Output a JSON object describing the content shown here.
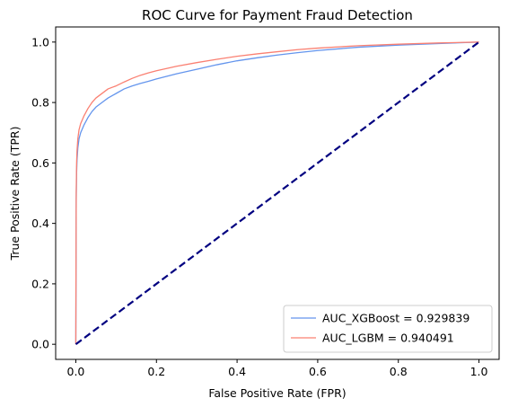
{
  "chart_data": {
    "type": "line",
    "title": "ROC Curve for Payment Fraud Detection",
    "xlabel": "False Positive Rate (FPR)",
    "ylabel": "True Positive Rate (TPR)",
    "xlim": [
      -0.05,
      1.05
    ],
    "ylim": [
      -0.05,
      1.05
    ],
    "xticks": [
      "0.0",
      "0.2",
      "0.4",
      "0.6",
      "0.8",
      "1.0"
    ],
    "yticks": [
      "0.0",
      "0.2",
      "0.4",
      "0.6",
      "0.8",
      "1.0"
    ],
    "grid": false,
    "legend_position": "lower-right",
    "series": [
      {
        "name": "AUC_XGBoost = 0.929839",
        "color": "#6495ed",
        "style": "solid",
        "x": [
          0.0,
          0.001,
          0.002,
          0.003,
          0.005,
          0.008,
          0.012,
          0.02,
          0.03,
          0.04,
          0.05,
          0.06,
          0.07,
          0.08,
          0.1,
          0.12,
          0.14,
          0.16,
          0.18,
          0.2,
          0.25,
          0.3,
          0.35,
          0.4,
          0.45,
          0.5,
          0.55,
          0.6,
          0.7,
          0.8,
          0.9,
          1.0
        ],
        "y": [
          0.0,
          0.48,
          0.57,
          0.61,
          0.65,
          0.68,
          0.7,
          0.725,
          0.75,
          0.77,
          0.785,
          0.795,
          0.805,
          0.815,
          0.83,
          0.845,
          0.855,
          0.863,
          0.87,
          0.878,
          0.895,
          0.91,
          0.925,
          0.938,
          0.948,
          0.957,
          0.965,
          0.972,
          0.983,
          0.99,
          0.995,
          1.0
        ]
      },
      {
        "name": "AUC_LGBM = 0.940491",
        "color": "#fa8072",
        "style": "solid",
        "x": [
          0.0,
          0.001,
          0.002,
          0.003,
          0.005,
          0.008,
          0.012,
          0.02,
          0.03,
          0.04,
          0.05,
          0.06,
          0.07,
          0.08,
          0.1,
          0.12,
          0.14,
          0.16,
          0.18,
          0.2,
          0.25,
          0.3,
          0.35,
          0.4,
          0.45,
          0.5,
          0.55,
          0.6,
          0.7,
          0.8,
          0.9,
          1.0
        ],
        "y": [
          0.0,
          0.5,
          0.6,
          0.64,
          0.68,
          0.71,
          0.73,
          0.755,
          0.78,
          0.8,
          0.815,
          0.825,
          0.835,
          0.845,
          0.855,
          0.868,
          0.88,
          0.89,
          0.898,
          0.905,
          0.92,
          0.932,
          0.943,
          0.953,
          0.961,
          0.968,
          0.975,
          0.98,
          0.988,
          0.993,
          0.997,
          1.0
        ]
      },
      {
        "name": "",
        "color": "#000080",
        "style": "dashed",
        "x": [
          0.0,
          1.0
        ],
        "y": [
          0.0,
          1.0
        ]
      }
    ]
  }
}
